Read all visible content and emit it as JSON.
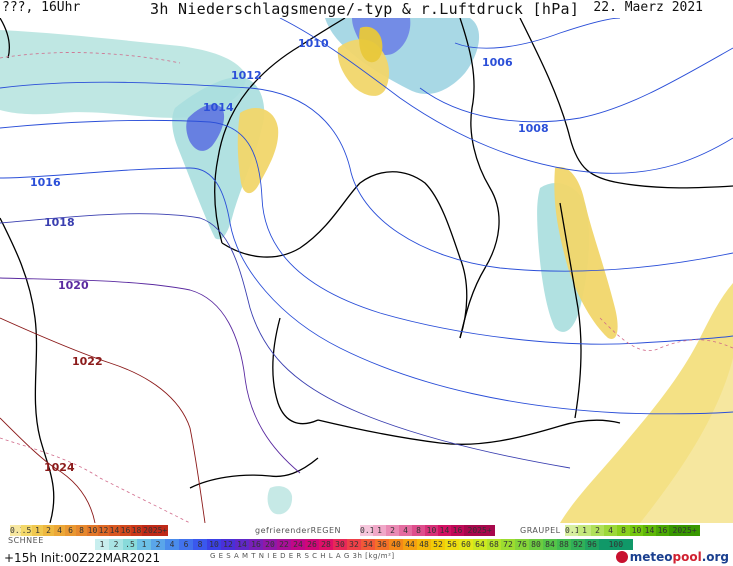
{
  "header": {
    "left": "???, 16Uhr",
    "title": "3h Niederschlagsmenge/-typ & r.Luftdruck [hPa]",
    "date": "22. Maerz 2021"
  },
  "isobars": [
    {
      "label": "1006",
      "color": "#2b4fd8"
    },
    {
      "label": "1008",
      "color": "#2b4fd8"
    },
    {
      "label": "1010",
      "color": "#2b4fd8"
    },
    {
      "label": "1012",
      "color": "#2b4fd8"
    },
    {
      "label": "1014",
      "color": "#2b4fd8"
    },
    {
      "label": "1016",
      "color": "#2b4fd8"
    },
    {
      "label": "1018",
      "color": "#3a3fb0"
    },
    {
      "label": "1020",
      "color": "#5a2aa0"
    },
    {
      "label": "1022",
      "color": "#8b1a1a"
    },
    {
      "label": "1024",
      "color": "#8b1a1a"
    }
  ],
  "legend": {
    "rain_scale": [
      "0.1",
      ".5",
      "1",
      "2",
      "4",
      "6",
      "8",
      "10",
      "12",
      "14",
      "16",
      "18",
      "2025+"
    ],
    "freezing_rain_label": "gefrierenderREGEN",
    "freezing_rain_scale": [
      "0.1",
      "1",
      "2",
      "4",
      "8",
      "10",
      "14",
      "16",
      "2025+"
    ],
    "graupel_label": "GRAUPEL",
    "graupel_scale": [
      "0.1",
      "1",
      "2",
      "4",
      "8",
      "10",
      "14",
      "16",
      "2025+"
    ],
    "snow_label": "SCHNEE",
    "snow_scale": [
      "1",
      "2",
      ".5",
      "1",
      "2",
      "4",
      "6",
      "8",
      "10",
      "12",
      "14",
      "16",
      "20",
      "22",
      "24",
      "26",
      "28",
      "30",
      "32",
      "34",
      "36",
      "40",
      "44",
      "48",
      "52",
      "56",
      "60",
      "64",
      "68",
      "72",
      "76",
      "80",
      "84",
      "88",
      "92",
      "96",
      "100"
    ],
    "total_label": "G E S A M T N I E D E R S C H L A G   3h   [kg/m²]",
    "footer": "+15h Init:00Z22MAR2021",
    "brand_a": "meteo",
    "brand_b": "pool",
    "brand_c": ".org"
  },
  "colors": {
    "rain_light": "#f3d86a",
    "rain_dark": "#e8c83a",
    "snow_light": "#a8dede",
    "snow_dark": "#5a6fe0",
    "isobar_low": "#2b4fd8",
    "isobar_high": "#8b1a1a"
  }
}
